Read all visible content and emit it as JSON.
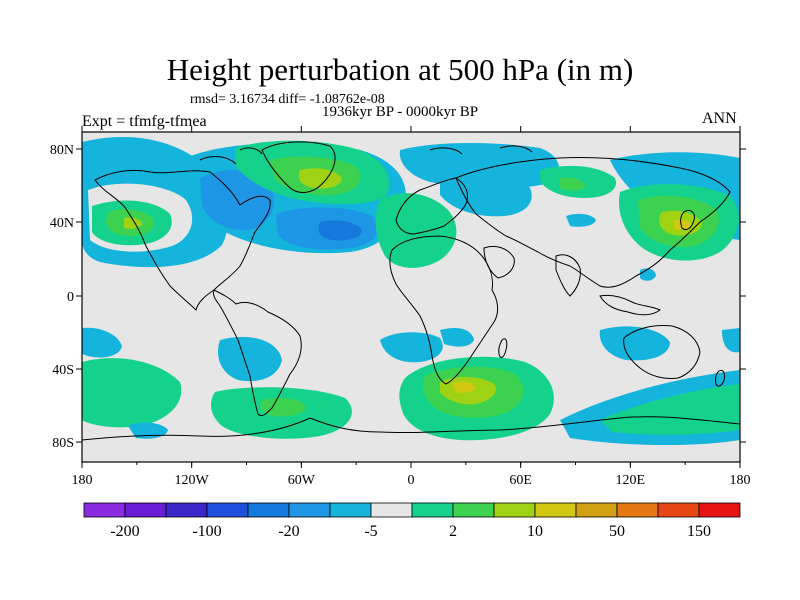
{
  "title": "Height perturbation at 500 hPa (in m)",
  "stats": "rmsd= 3.16734 diff= -1.08762e-08",
  "period": "1936kyr BP - 0000kyr BP",
  "experiment": "Expt = tfmfg-tfmea",
  "season": "ANN",
  "lon_ticks": [
    "180",
    "120W",
    "60W",
    "0",
    "60E",
    "120E",
    "180"
  ],
  "lat_ticks": [
    "80N",
    "40N",
    "0",
    "40S",
    "80S"
  ],
  "colorbar": {
    "colors": [
      "#8a2be2",
      "#6a1fd6",
      "#3c28c8",
      "#1e50dc",
      "#1478dc",
      "#1e96e6",
      "#14b4dc",
      "#e6e6e6",
      "#14d28c",
      "#3cd250",
      "#a0d214",
      "#d2c814",
      "#d2a014",
      "#e67814",
      "#e64614",
      "#e61414"
    ],
    "labels": [
      "-200",
      "-100",
      "-20",
      "-5",
      "2",
      "10",
      "50",
      "150"
    ]
  },
  "map_background": "#e6e6e6"
}
